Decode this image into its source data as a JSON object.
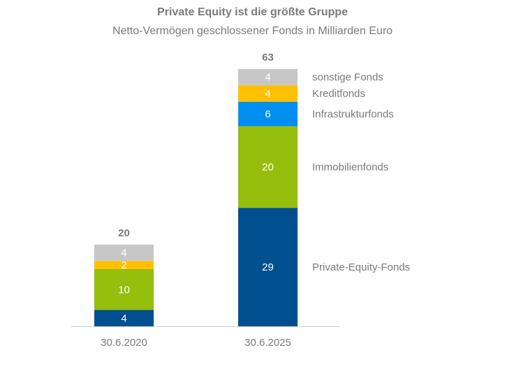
{
  "chart_data": {
    "type": "bar",
    "stacked": true,
    "title": "Private Equity ist die größte Gruppe",
    "subtitle": "Netto-Vermögen geschlossener Fonds in Milliarden Euro",
    "categories": [
      "30.6.2020",
      "30.6.2025"
    ],
    "totals": [
      "20",
      "63"
    ],
    "series": [
      {
        "name": "Private-Equity-Fonds",
        "values": [
          4,
          29
        ],
        "color": "#004f8f"
      },
      {
        "name": "Immobilienfonds",
        "values": [
          10,
          20
        ],
        "color": "#95be0d"
      },
      {
        "name": "Infrastrukturfonds",
        "values": [
          null,
          6
        ],
        "color": "#008ff0"
      },
      {
        "name": "Kreditfonds",
        "values": [
          2,
          4
        ],
        "color": "#ffc000"
      },
      {
        "name": "sonstige Fonds",
        "values": [
          4,
          4
        ],
        "color": "#c7c7c7"
      }
    ],
    "xlabel": "",
    "ylabel": "",
    "ylim": [
      0,
      63
    ],
    "grid": false,
    "legend": "right"
  }
}
